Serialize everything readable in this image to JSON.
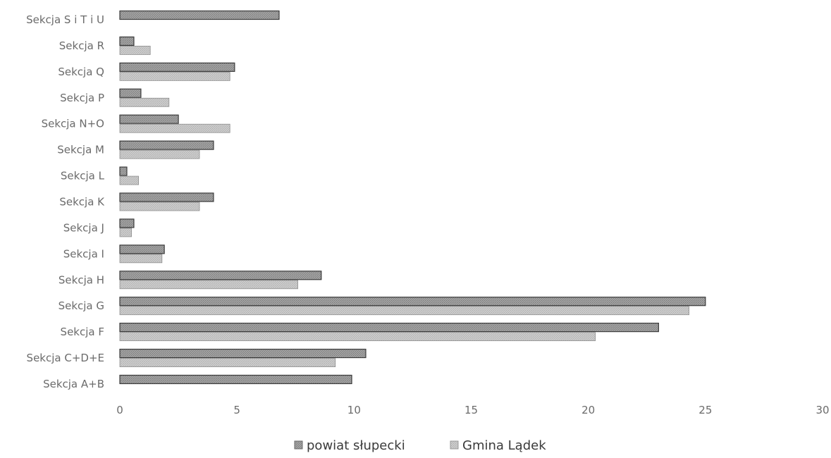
{
  "chart_data": {
    "type": "bar",
    "orientation": "horizontal",
    "categories": [
      "Sekcja S i T i U",
      "Sekcja R",
      "Sekcja Q",
      "Sekcja P",
      "Sekcja N+O",
      "Sekcja M",
      "Sekcja L",
      "Sekcja K",
      "Sekcja J",
      "Sekcja I",
      "Sekcja H",
      "Sekcja G",
      "Sekcja F",
      "Sekcja C+D+E",
      "Sekcja A+B"
    ],
    "series": [
      {
        "name": "powiat słupecki",
        "color": "#9a9a9a",
        "values": [
          6.8,
          0.6,
          4.9,
          0.9,
          2.5,
          4.0,
          0.3,
          4.0,
          0.6,
          1.9,
          8.6,
          25.0,
          23.0,
          10.5,
          9.9
        ]
      },
      {
        "name": "Gmina Lądek",
        "color": "#c4c4c4",
        "values": [
          null,
          1.3,
          4.7,
          2.1,
          4.7,
          3.4,
          0.8,
          3.4,
          0.5,
          1.8,
          7.6,
          24.3,
          20.3,
          9.2,
          null
        ]
      }
    ],
    "xlim": [
      0,
      30
    ],
    "xticks": [
      "0",
      "5",
      "10",
      "15",
      "20",
      "25",
      "30"
    ],
    "legend": "bottom"
  }
}
